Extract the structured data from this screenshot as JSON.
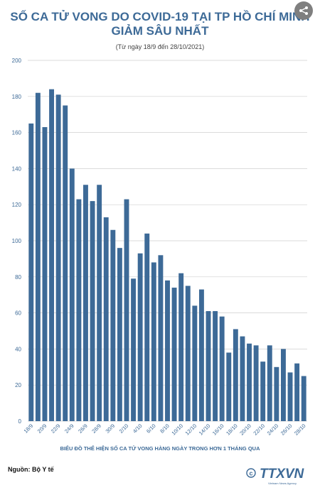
{
  "header": {
    "title_line1": "SỐ CA TỬ VONG DO COVID-19 TẠI TP HỒ CHÍ MINH",
    "title_line2": "GIẢM SÂU NHẤT",
    "subtitle": "(Từ ngày 18/9 đến 28/10/2021)"
  },
  "caption": "BIỂU ĐỒ THỂ HIỆN SỐ CA TỬ VONG HÀNG NGÀY TRONG HƠN 1 THÁNG QUA",
  "source": "Nguồn: Bộ Y tế",
  "logo": {
    "text": "TTXVN",
    "sub": "Vietnam News Agency",
    "icon": "copyright-icon"
  },
  "share_icon": "share-icon",
  "colors": {
    "bar": "#3d6a97",
    "title": "#3d6a97",
    "grid": "#cfcfcf",
    "tick": "#3d6a97"
  },
  "chart_data": {
    "type": "bar",
    "title": "",
    "xlabel": "",
    "ylabel": "",
    "ylim": [
      0,
      200
    ],
    "yticks": [
      0,
      20,
      40,
      60,
      80,
      100,
      120,
      140,
      160,
      180,
      200
    ],
    "grid": true,
    "categories": [
      "18/9",
      "19/9",
      "20/9",
      "21/9",
      "22/9",
      "23/9",
      "24/9",
      "25/9",
      "26/9",
      "27/9",
      "28/9",
      "29/9",
      "30/9",
      "1/10",
      "2/10",
      "3/10",
      "4/10",
      "5/10",
      "6/10",
      "7/10",
      "8/10",
      "9/10",
      "10/10",
      "11/10",
      "12/10",
      "13/10",
      "14/10",
      "15/10",
      "16/10",
      "17/10",
      "18/10",
      "19/10",
      "20/10",
      "21/10",
      "22/10",
      "23/10",
      "24/10",
      "25/10",
      "26/10",
      "27/10",
      "28/10"
    ],
    "visible_tick_labels": [
      "18/9",
      "20/9",
      "22/9",
      "24/9",
      "26/9",
      "28/9",
      "30/9",
      "2/10",
      "4/10",
      "6/10",
      "8/10",
      "10/10",
      "12/10",
      "14/10",
      "16/10",
      "18/10",
      "20/10",
      "22/10",
      "24/10",
      "26/10",
      "28/10"
    ],
    "values": [
      165,
      182,
      163,
      184,
      181,
      175,
      140,
      123,
      131,
      122,
      131,
      113,
      106,
      96,
      123,
      79,
      93,
      104,
      88,
      92,
      78,
      74,
      82,
      75,
      64,
      73,
      61,
      61,
      58,
      38,
      51,
      47,
      43,
      42,
      33,
      42,
      30,
      40,
      27,
      32,
      25
    ]
  }
}
